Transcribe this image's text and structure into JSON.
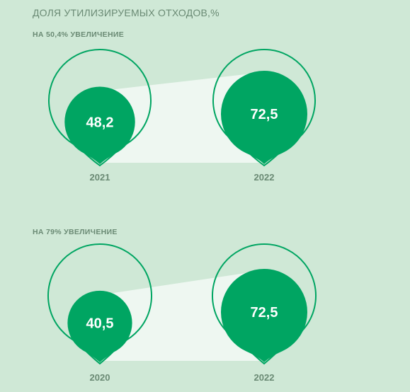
{
  "title": "ДОЛЯ УТИЛИЗИРУЕМЫХ ОТХОДОВ,%",
  "colors": {
    "background": "#cfe8d6",
    "accent": "#00a562",
    "ribbon": "#eef7f1",
    "year_text": "#6a8a74",
    "subtitle_text": "#6a8a74"
  },
  "chart_data": [
    {
      "type": "bubble",
      "title": "НА 50,4% УВЕЛИЧЕНИЕ",
      "categories": [
        "2021",
        "2022"
      ],
      "values": [
        48.2,
        72.5
      ],
      "value_labels": [
        "48,2",
        "72,5"
      ]
    },
    {
      "type": "bubble",
      "title": "НА 79% УВЕЛИЧЕНИЕ",
      "categories": [
        "2020",
        "2022"
      ],
      "values": [
        40.5,
        72.5
      ],
      "value_labels": [
        "40,5",
        "72,5"
      ]
    }
  ]
}
